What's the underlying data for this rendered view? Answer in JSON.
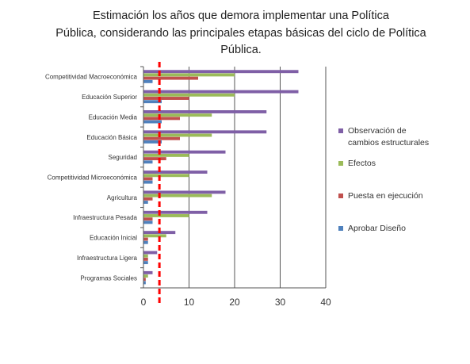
{
  "chart_data": {
    "type": "bar",
    "orientation": "horizontal",
    "title_lines": [
      "Estimación los años que demora implementar una Política",
      "Pública, considerando las principales etapas básicas del ciclo de Política",
      "Pública."
    ],
    "categories": [
      "Competitividad Macroeconómica",
      "Educación Superior",
      "Educación Media",
      "Educación Básica",
      "Seguridad",
      "Competitividad Microeconómica",
      "Agricultura",
      "Infraestructura Pesada",
      "Educación Inicial",
      "Infraestructura Ligera",
      "Programas Sociales"
    ],
    "series": [
      {
        "name": "Observación de cambios estructurales",
        "color": "#7f5fa6",
        "values": [
          34,
          34,
          27,
          27,
          18,
          14,
          18,
          14,
          7,
          3,
          2
        ]
      },
      {
        "name": "Efectos",
        "color": "#9bbb59",
        "values": [
          20,
          20,
          15,
          15,
          10,
          10,
          15,
          10,
          5,
          1,
          1
        ]
      },
      {
        "name": "Puesta en ejecución",
        "color": "#c0504d",
        "values": [
          12,
          10,
          8,
          8,
          5,
          2,
          2,
          2,
          1,
          1,
          0.5
        ]
      },
      {
        "name": "Aprobar Diseño",
        "color": "#4f81bd",
        "values": [
          2,
          4,
          4,
          4,
          2,
          2,
          1,
          2,
          1,
          1,
          0.5
        ]
      }
    ],
    "legend_lines": [
      [
        "Observación de",
        "cambios estructurales"
      ],
      [
        "Efectos"
      ],
      [
        "Puesta en ejecución"
      ],
      [
        "Aprobar Diseño"
      ]
    ],
    "xlim": [
      0,
      40
    ],
    "xticks": [
      "0",
      "10",
      "20",
      "30",
      "40"
    ],
    "reference_line": {
      "x": 3.5,
      "color": "#ff0000",
      "style": "dashed"
    },
    "grid": "vertical",
    "legend_position": "right"
  }
}
